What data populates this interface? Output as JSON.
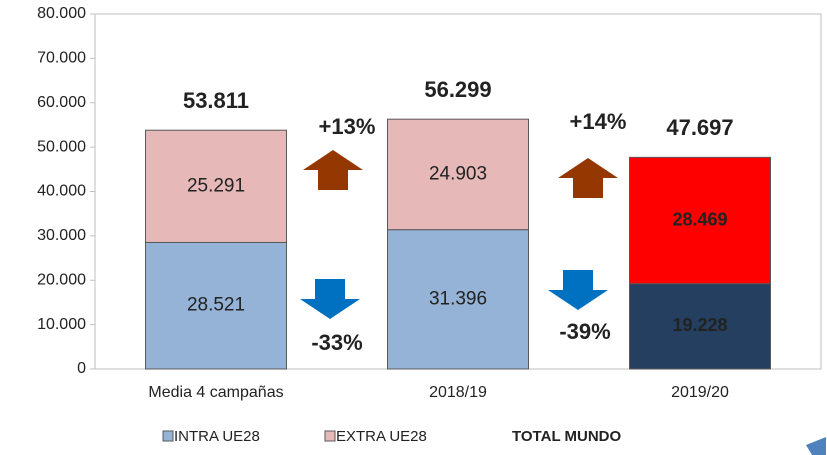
{
  "chart_data": {
    "type": "stacked_bar",
    "categories": [
      "Media 4 campañas",
      "2018/19",
      "2019/20"
    ],
    "series": [
      {
        "name": "INTRA UE28",
        "color": "#95b3d7",
        "point_colors": [
          "#95b3d7",
          "#95b3d7",
          "#243f60"
        ],
        "values": [
          28521,
          31396,
          19228
        ],
        "value_labels": [
          "28.521",
          "31.396",
          "19.228"
        ]
      },
      {
        "name": "EXTRA UE28",
        "color": "#e6b9b8",
        "point_colors": [
          "#e6b9b8",
          "#e6b9b8",
          "#ff0000"
        ],
        "values": [
          25291,
          24903,
          28469
        ],
        "value_labels": [
          "25.291",
          "24.903",
          "28.469"
        ]
      }
    ],
    "total": {
      "name": "TOTAL MUNDO",
      "values": [
        53811,
        56299,
        47697
      ],
      "value_labels": [
        "53.811",
        "56.299",
        "47.697"
      ]
    },
    "annotations": [
      {
        "text": "+13%",
        "direction": "up",
        "color": "#953700"
      },
      {
        "text": "-33%",
        "direction": "down",
        "color": "#0070c0"
      },
      {
        "text": "+14%",
        "direction": "up",
        "color": "#953700"
      },
      {
        "text": "-39%",
        "direction": "down",
        "color": "#0070c0"
      }
    ],
    "ylim": [
      0,
      80000
    ],
    "yticks": [
      0,
      {
        "value": 10000,
        "label": "10.000"
      },
      {
        "value": 20000,
        "label": "20.000"
      },
      {
        "value": 30000,
        "label": "30.000"
      },
      {
        "value": 40000,
        "label": "40.000"
      },
      {
        "value": 50000,
        "label": "50.000"
      },
      {
        "value": 60000,
        "label": "60.000"
      },
      {
        "value": 70000,
        "label": "70.000"
      },
      {
        "value": 80000,
        "label": "80.000"
      }
    ],
    "grid": false
  }
}
